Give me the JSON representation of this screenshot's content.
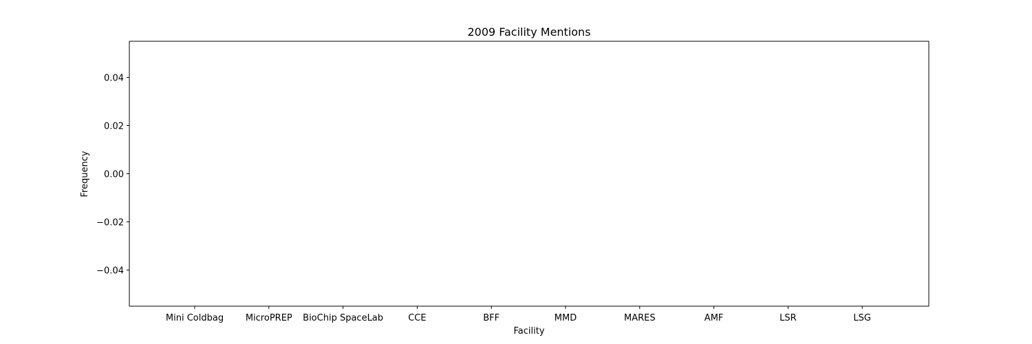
{
  "chart_data": {
    "type": "bar",
    "title": "2009 Facility Mentions",
    "xlabel": "Facility",
    "ylabel": "Frequency",
    "categories": [
      "Mini Coldbag",
      "MicroPREP",
      "BioChip SpaceLab",
      "CCE",
      "BFF",
      "MMD",
      "MARES",
      "AMF",
      "LSR",
      "LSG"
    ],
    "values": [
      0,
      0,
      0,
      0,
      0,
      0,
      0,
      0,
      0,
      0
    ],
    "ylim": [
      -0.055,
      0.055
    ],
    "yticks": [
      -0.04,
      -0.02,
      0.0,
      0.02,
      0.04
    ],
    "ytick_labels": [
      "−0.04",
      "−0.02",
      "0.00",
      "0.02",
      "0.04"
    ],
    "grid": false,
    "colors": {
      "bar": "#1f77b4",
      "axis": "#000000"
    }
  }
}
